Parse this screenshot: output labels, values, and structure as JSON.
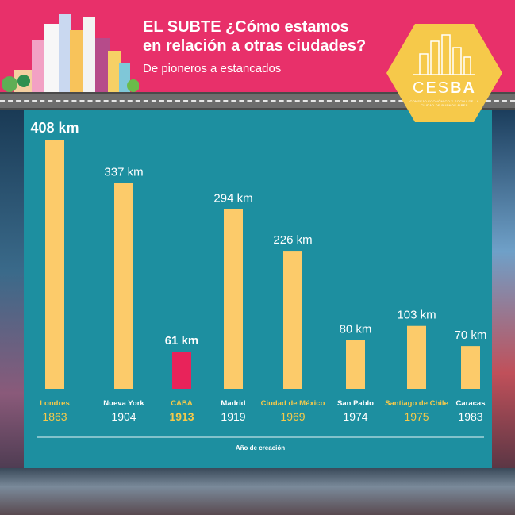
{
  "header": {
    "title_line1": "EL SUBTE ¿Cómo estamos",
    "title_line2": "en relación a otras ciudades?",
    "subtitle": "De pioneros a estancados"
  },
  "logo": {
    "name_light": "CES",
    "name_bold": "BA",
    "tagline": "CONSEJO ECONÓMICO Y SOCIAL DE LA CIUDAD DE BUENOS AIRES",
    "icon": "city-skyline-icon"
  },
  "colors": {
    "header_bg": "#e8306a",
    "panel_bg": "#1d8fa0",
    "bar_default": "#fccb6a",
    "bar_highlight": "#e8235a",
    "label_yellow": "#f6c94a",
    "label_white": "#ffffff",
    "logo_bg": "#f6c94a"
  },
  "chart_data": {
    "type": "bar",
    "title": "",
    "xlabel": "Año de creación",
    "ylabel": "",
    "ylim": [
      0,
      408
    ],
    "categories": [
      "Londres",
      "Nueva York",
      "CABA",
      "Madrid",
      "Ciudad de México",
      "San Pablo",
      "Santiago de Chile",
      "Caracas"
    ],
    "years": [
      "1863",
      "1904",
      "1913",
      "1919",
      "1969",
      "1974",
      "1975",
      "1983"
    ],
    "values": [
      408,
      337,
      61,
      294,
      226,
      80,
      103,
      70
    ],
    "value_labels": [
      "408 km",
      "337 km",
      "61 km",
      "294 km",
      "226 km",
      "80 km",
      "103 km",
      "70 km"
    ],
    "highlight": [
      "CABA"
    ],
    "label_color": [
      "yellow",
      "white",
      "yellow",
      "white",
      "yellow",
      "white",
      "yellow",
      "white"
    ],
    "value_label_style": [
      "bold-large",
      "normal",
      "bold",
      "normal",
      "normal",
      "normal",
      "normal",
      "normal"
    ],
    "grid": false,
    "legend": "none"
  }
}
